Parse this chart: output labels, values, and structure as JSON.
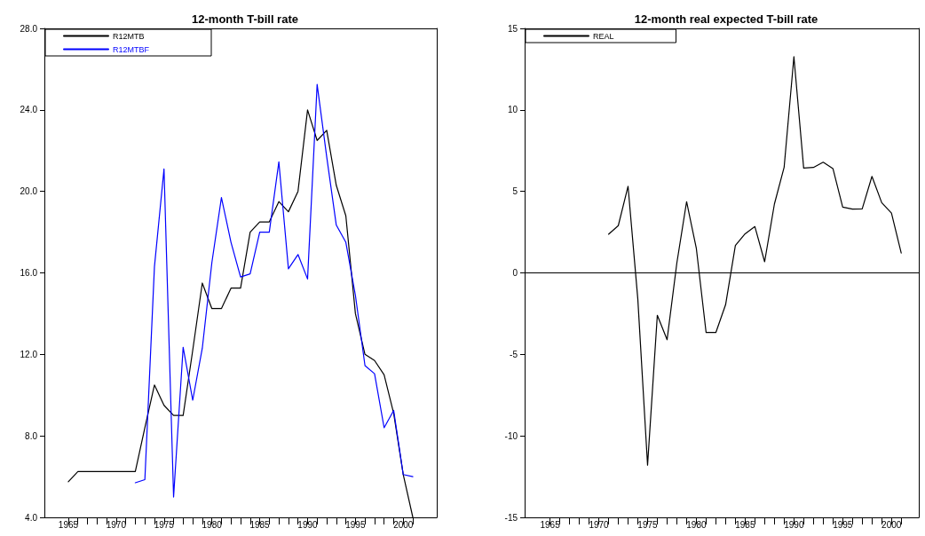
{
  "chart_data": [
    {
      "type": "line",
      "title": "12-month T-bill rate",
      "x": [
        1965,
        1966,
        1967,
        1968,
        1969,
        1970,
        1971,
        1972,
        1973,
        1974,
        1975,
        1976,
        1977,
        1978,
        1979,
        1980,
        1981,
        1982,
        1983,
        1984,
        1985,
        1986,
        1987,
        1988,
        1989,
        1990,
        1991,
        1992,
        1993,
        1994,
        1995,
        1996,
        1997,
        1998,
        1999,
        2000,
        2001
      ],
      "series": [
        {
          "name": "R12MTB",
          "color": "#000000",
          "values": [
            5.75,
            6.25,
            6.25,
            6.25,
            6.25,
            6.25,
            6.25,
            6.25,
            8.4,
            10.5,
            9.5,
            9.0,
            9.0,
            12.2,
            15.5,
            14.25,
            14.25,
            15.25,
            15.25,
            18.0,
            18.5,
            18.5,
            19.5,
            19.0,
            20.0,
            24.0,
            22.5,
            23.0,
            20.3,
            18.8,
            14.0,
            12.0,
            11.7,
            11.0,
            9.1,
            6.1,
            4.0
          ]
        },
        {
          "name": "R12MTBF",
          "color": "#0000ff",
          "values": [
            null,
            null,
            null,
            null,
            null,
            null,
            null,
            5.7,
            5.85,
            16.3,
            21.1,
            5.0,
            12.35,
            9.75,
            12.3,
            16.5,
            19.7,
            17.5,
            15.8,
            15.95,
            18.0,
            18.0,
            21.45,
            16.2,
            16.9,
            15.7,
            25.25,
            21.7,
            18.35,
            17.5,
            14.9,
            11.45,
            11.05,
            8.4,
            9.25,
            6.1,
            6.0
          ]
        }
      ],
      "xlim": [
        1962.5,
        2003.5
      ],
      "xticks": [
        1965,
        {
          "value": 1966,
          "label": null
        },
        {
          "value": 1967,
          "label": null
        },
        {
          "value": 1968,
          "label": null
        },
        {
          "value": 1969,
          "label": null
        },
        1970,
        {
          "value": 1971,
          "label": null
        },
        {
          "value": 1972,
          "label": null
        },
        {
          "value": 1973,
          "label": null
        },
        {
          "value": 1974,
          "label": null
        },
        1975,
        {
          "value": 1976,
          "label": null
        },
        {
          "value": 1977,
          "label": null
        },
        {
          "value": 1978,
          "label": null
        },
        {
          "value": 1979,
          "label": null
        },
        1980,
        {
          "value": 1981,
          "label": null
        },
        {
          "value": 1982,
          "label": null
        },
        {
          "value": 1983,
          "label": null
        },
        {
          "value": 1984,
          "label": null
        },
        1985,
        {
          "value": 1986,
          "label": null
        },
        {
          "value": 1987,
          "label": null
        },
        {
          "value": 1988,
          "label": null
        },
        {
          "value": 1989,
          "label": null
        },
        1990,
        {
          "value": 1991,
          "label": null
        },
        {
          "value": 1992,
          "label": null
        },
        {
          "value": 1993,
          "label": null
        },
        {
          "value": 1994,
          "label": null
        },
        1995,
        {
          "value": 1996,
          "label": null
        },
        {
          "value": 1997,
          "label": null
        },
        {
          "value": 1998,
          "label": null
        },
        {
          "value": 1999,
          "label": null
        },
        2000,
        {
          "value": 2001,
          "label": null
        }
      ],
      "ylim": [
        4,
        28
      ],
      "yticks": [
        {
          "value": 4,
          "label": "4.0"
        },
        {
          "value": 8,
          "label": "8.0"
        },
        {
          "value": 12,
          "label": "12.0"
        },
        {
          "value": 16,
          "label": "16.0"
        },
        {
          "value": 20,
          "label": "20.0"
        },
        {
          "value": 24,
          "label": "24.0"
        },
        {
          "value": 28,
          "label": "28.0"
        }
      ],
      "grid": false,
      "legend": "top left",
      "marker": "none",
      "line_style": "solid"
    },
    {
      "type": "line",
      "title": "12-month real expected T-bill rate",
      "x": [
        1971,
        1972,
        1973,
        1974,
        1975,
        1976,
        1977,
        1978,
        1979,
        1980,
        1981,
        1982,
        1983,
        1984,
        1985,
        1986,
        1987,
        1988,
        1989,
        1990,
        1991,
        1992,
        1993,
        1994,
        1995,
        1996,
        1997,
        1998,
        1999,
        2000,
        2001
      ],
      "series": [
        {
          "name": "REAL",
          "color": "#000000",
          "values": [
            2.37,
            2.9,
            5.31,
            -1.6,
            -11.8,
            -2.6,
            -4.1,
            0.6,
            4.37,
            1.5,
            -3.66,
            -3.66,
            -1.95,
            1.68,
            2.4,
            2.84,
            0.68,
            4.22,
            6.49,
            13.26,
            6.43,
            6.47,
            6.79,
            6.4,
            4.04,
            3.91,
            3.93,
            5.92,
            4.31,
            3.67,
            1.22
          ]
        }
      ],
      "xlim": [
        1962.4,
        2002.8
      ],
      "xticks": [
        1965,
        {
          "value": 1966,
          "label": null
        },
        {
          "value": 1967,
          "label": null
        },
        {
          "value": 1968,
          "label": null
        },
        {
          "value": 1969,
          "label": null
        },
        1970,
        {
          "value": 1971,
          "label": null
        },
        {
          "value": 1972,
          "label": null
        },
        {
          "value": 1973,
          "label": null
        },
        {
          "value": 1974,
          "label": null
        },
        1975,
        {
          "value": 1976,
          "label": null
        },
        {
          "value": 1977,
          "label": null
        },
        {
          "value": 1978,
          "label": null
        },
        {
          "value": 1979,
          "label": null
        },
        1980,
        {
          "value": 1981,
          "label": null
        },
        {
          "value": 1982,
          "label": null
        },
        {
          "value": 1983,
          "label": null
        },
        {
          "value": 1984,
          "label": null
        },
        1985,
        {
          "value": 1986,
          "label": null
        },
        {
          "value": 1987,
          "label": null
        },
        {
          "value": 1988,
          "label": null
        },
        {
          "value": 1989,
          "label": null
        },
        1990,
        {
          "value": 1991,
          "label": null
        },
        {
          "value": 1992,
          "label": null
        },
        {
          "value": 1993,
          "label": null
        },
        {
          "value": 1994,
          "label": null
        },
        1995,
        {
          "value": 1996,
          "label": null
        },
        {
          "value": 1997,
          "label": null
        },
        {
          "value": 1998,
          "label": null
        },
        {
          "value": 1999,
          "label": null
        },
        2000,
        {
          "value": 2001,
          "label": null
        }
      ],
      "ylim": [
        -15,
        15
      ],
      "yticks": [
        -15,
        -10,
        -5,
        0,
        5,
        10,
        15
      ],
      "ref_lines": [
        {
          "axis": "y",
          "value": 0,
          "color": "#000000",
          "line_style": "solid"
        }
      ],
      "grid": false,
      "legend": "top left",
      "marker": "none",
      "line_style": "solid"
    }
  ]
}
